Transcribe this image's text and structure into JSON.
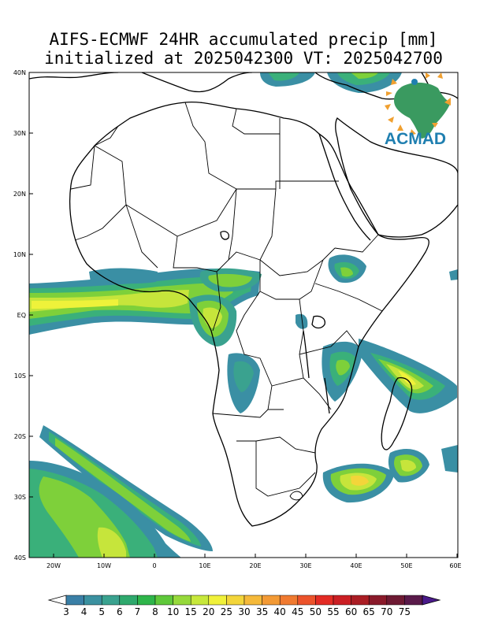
{
  "title_line1": "AIFS-ECMWF 24HR accumulated precip [mm]",
  "title_line2": "initialized at 2025042300 VT: 2025042700",
  "logo": {
    "text": "ACMAD",
    "color": "#1f7fb0"
  },
  "lat_labels": [
    "40N",
    "30N",
    "20N",
    "10N",
    "EQ",
    "10S",
    "20S",
    "30S",
    "40S"
  ],
  "lon_labels": [
    "20W",
    "10W",
    "0",
    "10E",
    "20E",
    "30E",
    "40E",
    "50E",
    "60E"
  ],
  "colorbar": {
    "labels": [
      "3",
      "4",
      "5",
      "6",
      "7",
      "8",
      "10",
      "15",
      "20",
      "25",
      "30",
      "35",
      "40",
      "45",
      "50",
      "55",
      "60",
      "65",
      "70",
      "75"
    ],
    "colors": [
      "#3a7fa6",
      "#3b91a0",
      "#3aa28f",
      "#2fa96d",
      "#2eb54a",
      "#5fc83a",
      "#96d93b",
      "#c7e83b",
      "#f0f13a",
      "#f3d53a",
      "#f5b93a",
      "#f39a35",
      "#f07a30",
      "#ec532b",
      "#e32b24",
      "#cb1f24",
      "#aa1d24",
      "#8a1a2a",
      "#6e1a33",
      "#5a1a4a"
    ],
    "low_end_color": "#ffffff",
    "high_end_color": "#4a1a8a"
  }
}
